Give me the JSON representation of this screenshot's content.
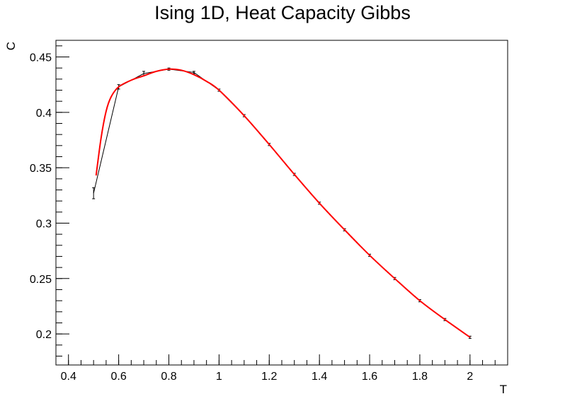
{
  "chart_data": {
    "type": "line",
    "title": "Ising 1D, Heat Capacity Gibbs",
    "xlabel": "T",
    "ylabel": "C",
    "xlim": [
      0.35,
      2.15
    ],
    "ylim": [
      0.172,
      0.465
    ],
    "x_ticks": [
      0.4,
      0.6,
      0.8,
      1,
      1.2,
      1.4,
      1.6,
      1.8,
      2
    ],
    "x_tick_labels": [
      "0.4",
      "0.6",
      "0.8",
      "1",
      "1.2",
      "1.4",
      "1.6",
      "1.8",
      "2"
    ],
    "y_ticks": [
      0.2,
      0.25,
      0.3,
      0.35,
      0.4,
      0.45
    ],
    "y_tick_labels": [
      "0.2",
      "0.25",
      "0.3",
      "0.35",
      "0.4",
      "0.45"
    ],
    "grid": false,
    "series": [
      {
        "style": "points-with-error-bars",
        "color": "#000000",
        "x": [
          0.5,
          0.6,
          0.7,
          0.8,
          0.9,
          1.0,
          1.1,
          1.2,
          1.3,
          1.4,
          1.5,
          1.6,
          1.7,
          1.8,
          1.9,
          2.0
        ],
        "y": [
          0.327,
          0.423,
          0.435,
          0.439,
          0.436,
          0.42,
          0.397,
          0.371,
          0.344,
          0.318,
          0.294,
          0.271,
          0.25,
          0.23,
          0.213,
          0.197
        ],
        "yerr": [
          0.005,
          0.002,
          0.002,
          0.001,
          0.001,
          0.001,
          0.001,
          0.001,
          0.001,
          0.001,
          0.001,
          0.001,
          0.001,
          0.001,
          0.001,
          0.001
        ]
      },
      {
        "style": "smooth-curve",
        "color": "#ff0000",
        "x": [
          0.51,
          0.53,
          0.55,
          0.57,
          0.6,
          0.65,
          0.7,
          0.75,
          0.8,
          0.85,
          0.9,
          0.95,
          1.0,
          1.1,
          1.2,
          1.3,
          1.4,
          1.5,
          1.6,
          1.7,
          1.8,
          1.9,
          2.0
        ],
        "y": [
          0.343,
          0.377,
          0.401,
          0.414,
          0.423,
          0.429,
          0.433,
          0.437,
          0.439,
          0.438,
          0.434,
          0.428,
          0.42,
          0.397,
          0.371,
          0.344,
          0.318,
          0.294,
          0.271,
          0.25,
          0.23,
          0.213,
          0.197
        ]
      }
    ]
  }
}
